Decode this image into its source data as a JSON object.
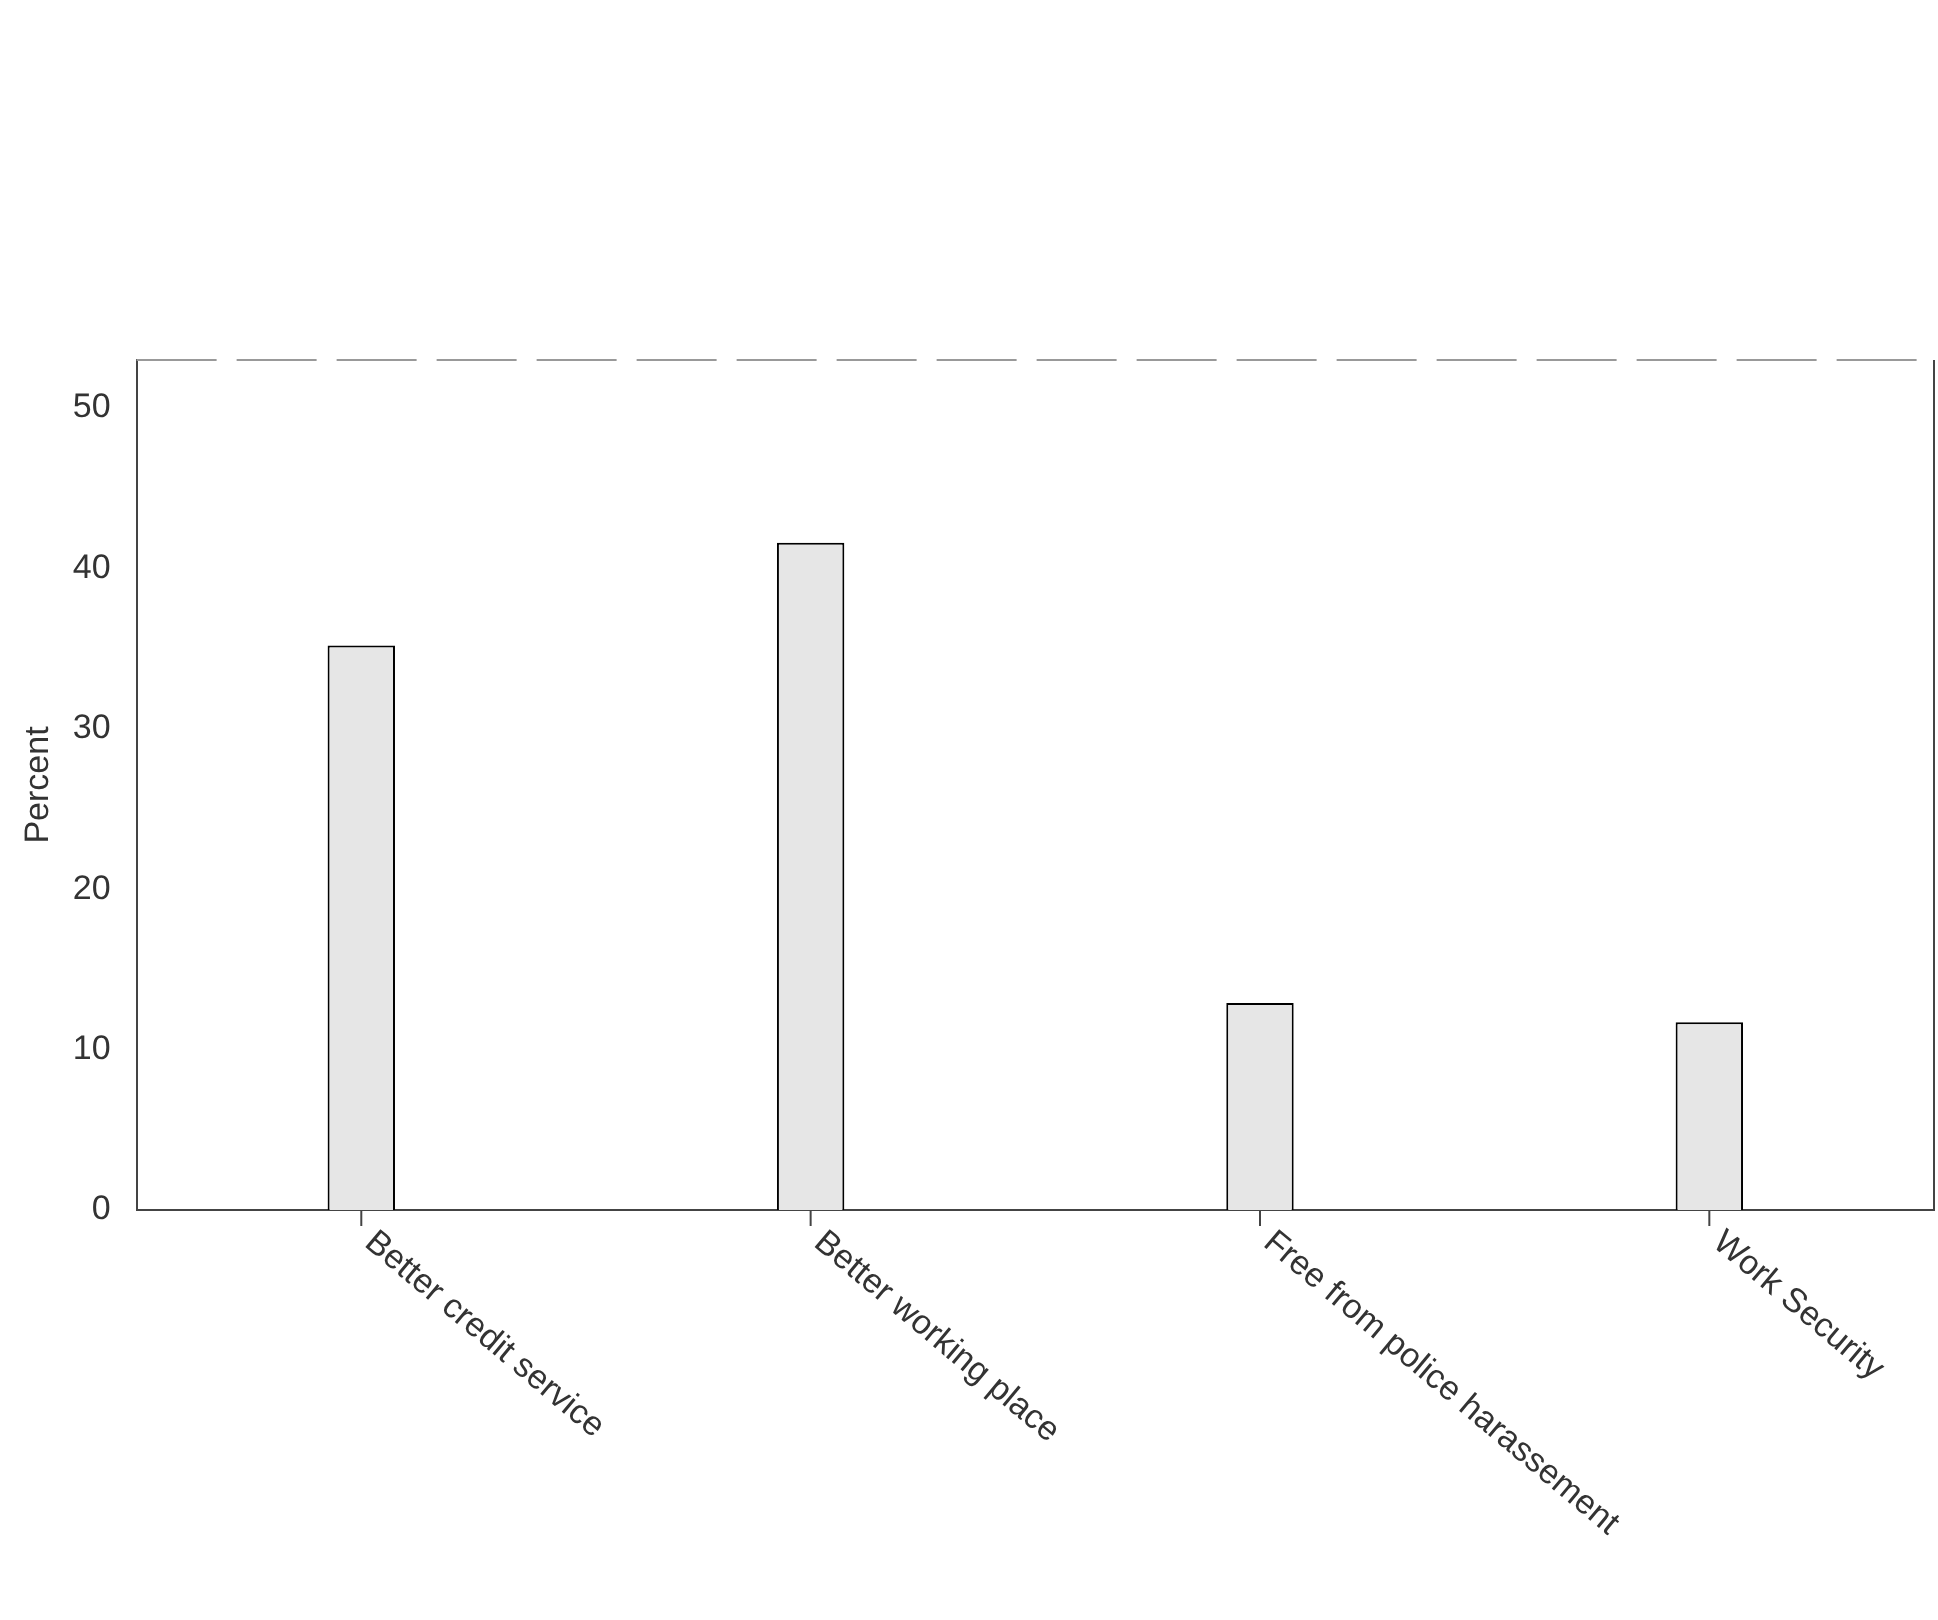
{
  "chart_data": {
    "type": "bar",
    "ylabel": "Percent",
    "categories": [
      "Better credit service",
      "Better working place",
      "Free from police harassement",
      "Work Security"
    ],
    "values": [
      35.2,
      41.6,
      12.9,
      11.7
    ],
    "color": "#e6e6e6",
    "ylim": [
      0,
      53
    ],
    "yticks": [
      0,
      10,
      20,
      30,
      40,
      50
    ],
    "grid": false,
    "legend": false
  }
}
